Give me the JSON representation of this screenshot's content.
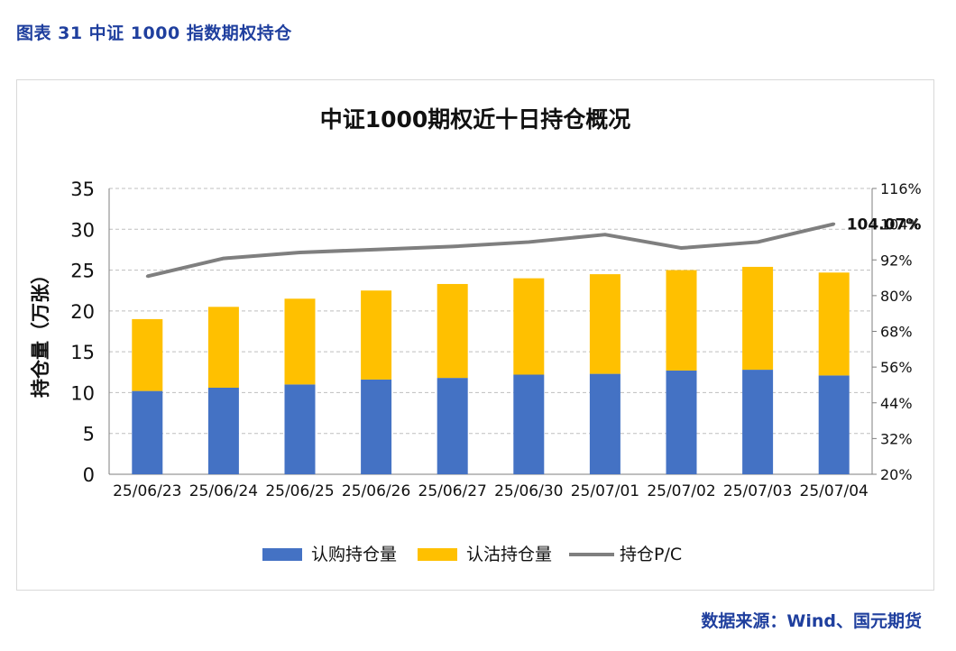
{
  "figure_caption": "图表 31  中证 1000 指数期权持仓",
  "source_note": "数据来源：Wind、国元期货",
  "colors": {
    "call": "#4472c4",
    "put": "#ffc000",
    "pc_line": "#7f7f7f",
    "pc_label": "#ff0000",
    "caption": "#1f3f9e"
  },
  "chart_data": {
    "type": "bar",
    "stacked": true,
    "title": "中证1000期权近十日持仓概况",
    "ylabel": "持仓量（万张）",
    "y2label": "",
    "categories": [
      "25/06/23",
      "25/06/24",
      "25/06/25",
      "25/06/26",
      "25/06/27",
      "25/06/30",
      "25/07/01",
      "25/07/02",
      "25/07/03",
      "25/07/04"
    ],
    "ylim": [
      0,
      35
    ],
    "yticks": [
      "0",
      "5",
      "10",
      "15",
      "20",
      "25",
      "30",
      "35"
    ],
    "y2lim": [
      20,
      116
    ],
    "y2ticks": [
      "20%",
      "32%",
      "44%",
      "56%",
      "68%",
      "80%",
      "92%",
      "104%",
      "116%"
    ],
    "grid": true,
    "legend_position": "bottom",
    "series": [
      {
        "name": "认购持仓量",
        "type": "bar",
        "values": [
          10.2,
          10.6,
          11.0,
          11.6,
          11.8,
          12.2,
          12.3,
          12.7,
          12.8,
          12.1
        ]
      },
      {
        "name": "认沽持仓量",
        "type": "bar",
        "values": [
          8.8,
          9.9,
          10.5,
          10.9,
          11.5,
          11.8,
          12.2,
          12.3,
          12.6,
          12.6
        ]
      },
      {
        "name": "持仓P/C",
        "type": "line",
        "axis": "right",
        "values": [
          86.5,
          92.5,
          94.5,
          95.5,
          96.5,
          98.0,
          100.5,
          96.0,
          98.0,
          104.07
        ]
      }
    ],
    "annotation": "104.07%"
  }
}
